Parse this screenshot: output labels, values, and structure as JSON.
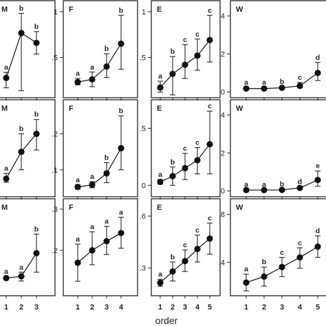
{
  "chart_data": [
    {
      "type": "line",
      "panel_label": "M",
      "yticks": [],
      "ylim": [
        0.06,
        0.75
      ],
      "x": [
        1,
        2,
        3
      ],
      "y": [
        0.2,
        0.52,
        0.45
      ],
      "yerr_low": [
        0.13,
        0.11,
        0.37
      ],
      "yerr_high": [
        0.24,
        0.66,
        0.53
      ],
      "letters": [
        "a",
        "b",
        "b"
      ]
    },
    {
      "type": "line",
      "panel_label": "F",
      "yticks": [
        ".5",
        "1"
      ],
      "yticks_values": [
        0.5,
        1.0
      ],
      "ylim": [
        0.06,
        1.12
      ],
      "x": [
        1,
        2,
        3,
        4
      ],
      "y": [
        0.23,
        0.26,
        0.4,
        0.65
      ],
      "yerr_low": [
        0.2,
        0.18,
        0.28,
        0.37
      ],
      "yerr_high": [
        0.27,
        0.34,
        0.54,
        0.96
      ],
      "letters": [
        "a",
        "a",
        "b",
        "b"
      ]
    },
    {
      "type": "line",
      "panel_label": "E",
      "yticks": [
        ".5",
        "1"
      ],
      "yticks_values": [
        0.5,
        1.0
      ],
      "ylim": [
        0.06,
        1.12
      ],
      "x": [
        1,
        2,
        3,
        4,
        5
      ],
      "y": [
        0.17,
        0.32,
        0.42,
        0.52,
        0.69
      ],
      "yerr_low": [
        0.12,
        0.09,
        0.27,
        0.36,
        0.45
      ],
      "yerr_high": [
        0.24,
        0.51,
        0.64,
        0.7,
        0.96
      ],
      "letters": [
        "a",
        "b",
        "c",
        "c",
        "c"
      ]
    },
    {
      "type": "line",
      "panel_label": "W",
      "yticks": [
        "0",
        "2",
        "4"
      ],
      "yticks_values": [
        0,
        2,
        4
      ],
      "ylim": [
        -0.3,
        4.8
      ],
      "x": [
        1,
        2,
        3,
        4,
        5
      ],
      "y": [
        0.18,
        0.18,
        0.22,
        0.32,
        1.0
      ],
      "yerr_low": [
        0.12,
        0.12,
        0.16,
        0.22,
        0.6
      ],
      "yerr_high": [
        0.24,
        0.24,
        0.28,
        0.5,
        1.55
      ],
      "letters": [
        "a",
        "a",
        "b",
        "c",
        "d"
      ]
    },
    {
      "type": "line",
      "panel_label": "M",
      "yticks": [],
      "ylim": [
        0.0,
        0.27
      ],
      "x": [
        1,
        2,
        3
      ],
      "y": [
        0.05,
        0.125,
        0.175
      ],
      "yerr_low": [
        0.04,
        0.075,
        0.13
      ],
      "yerr_high": [
        0.065,
        0.175,
        0.215
      ],
      "letters": [
        "a",
        "b",
        "b"
      ]
    },
    {
      "type": "line",
      "panel_label": "F",
      "yticks": [
        ".1",
        ".2"
      ],
      "yticks_values": [
        0.1,
        0.2
      ],
      "ylim": [
        0.025,
        0.295
      ],
      "x": [
        1,
        2,
        3,
        4
      ],
      "y": [
        0.052,
        0.058,
        0.09,
        0.16
      ],
      "yerr_low": [
        0.046,
        0.05,
        0.064,
        0.1
      ],
      "yerr_high": [
        0.058,
        0.067,
        0.12,
        0.25
      ],
      "letters": [
        "a",
        "a",
        "b",
        "b"
      ]
    },
    {
      "type": "line",
      "panel_label": "E",
      "yticks": [
        "0",
        ".5"
      ],
      "yticks_values": [
        0.0,
        0.5
      ],
      "ylim": [
        -0.1,
        0.75
      ],
      "x": [
        1,
        2,
        3,
        4,
        5
      ],
      "y": [
        0.03,
        0.08,
        0.15,
        0.22,
        0.36
      ],
      "yerr_low": [
        0.01,
        0.0,
        0.05,
        0.1,
        0.1
      ],
      "yerr_high": [
        0.05,
        0.16,
        0.28,
        0.33,
        0.65
      ],
      "letters": [
        "a",
        "b",
        "c",
        "c",
        "c"
      ]
    },
    {
      "type": "line",
      "panel_label": "W",
      "yticks": [
        "0",
        "2",
        "4"
      ],
      "yticks_values": [
        0,
        2,
        4
      ],
      "ylim": [
        -0.3,
        4.8
      ],
      "x": [
        1,
        2,
        3,
        4,
        5
      ],
      "y": [
        0.05,
        0.05,
        0.06,
        0.16,
        0.58
      ],
      "yerr_low": [
        0.02,
        0.02,
        0.03,
        0.1,
        0.25
      ],
      "yerr_high": [
        0.08,
        0.08,
        0.09,
        0.22,
        1.05
      ],
      "letters": [
        "a",
        "a",
        "b",
        "d",
        "e"
      ]
    },
    {
      "type": "line",
      "panel_label": "M",
      "yticks": [],
      "ylim": [
        0.1,
        0.43
      ],
      "x": [
        1,
        2,
        3
      ],
      "y": [
        0.16,
        0.166,
        0.245
      ],
      "yerr_low": [
        0.155,
        0.15,
        0.18
      ],
      "yerr_high": [
        0.165,
        0.18,
        0.31
      ],
      "letters": [
        "a",
        "a",
        "b"
      ]
    },
    {
      "type": "line",
      "panel_label": "F",
      "yticks": [
        ".2",
        ".3"
      ],
      "yticks_values": [
        0.2,
        0.3
      ],
      "ylim": [
        0.09,
        0.325
      ],
      "x": [
        1,
        2,
        3,
        4
      ],
      "y": [
        0.17,
        0.2,
        0.222,
        0.242
      ],
      "yerr_low": [
        0.125,
        0.165,
        0.19,
        0.205
      ],
      "yerr_high": [
        0.215,
        0.245,
        0.258,
        0.28
      ],
      "letters": [
        "a",
        "a",
        "a",
        "a"
      ]
    },
    {
      "type": "line",
      "panel_label": "E",
      "yticks": [
        ".3",
        ".6"
      ],
      "yticks_values": [
        0.3,
        0.6
      ],
      "ylim": [
        0.14,
        0.7
      ],
      "x": [
        1,
        2,
        3,
        4,
        5
      ],
      "y": [
        0.215,
        0.28,
        0.34,
        0.41,
        0.47
      ],
      "yerr_low": [
        0.195,
        0.225,
        0.28,
        0.335,
        0.38
      ],
      "yerr_high": [
        0.235,
        0.335,
        0.405,
        0.49,
        0.56
      ],
      "letters": [
        "a",
        "b",
        "c",
        "c",
        "c"
      ]
    },
    {
      "type": "line",
      "panel_label": "W",
      "yticks": [
        ".4",
        ".8"
      ],
      "yticks_values": [
        0.4,
        0.8
      ],
      "ylim": [
        0.12,
        0.93
      ],
      "x": [
        1,
        2,
        3,
        4,
        5
      ],
      "y": [
        0.23,
        0.28,
        0.36,
        0.44,
        0.53
      ],
      "yerr_low": [
        0.16,
        0.2,
        0.28,
        0.35,
        0.44
      ],
      "yerr_high": [
        0.3,
        0.36,
        0.44,
        0.52,
        0.62
      ],
      "letters": [
        "a",
        "b",
        "c",
        "c",
        "d"
      ]
    }
  ],
  "xlabel": "order"
}
